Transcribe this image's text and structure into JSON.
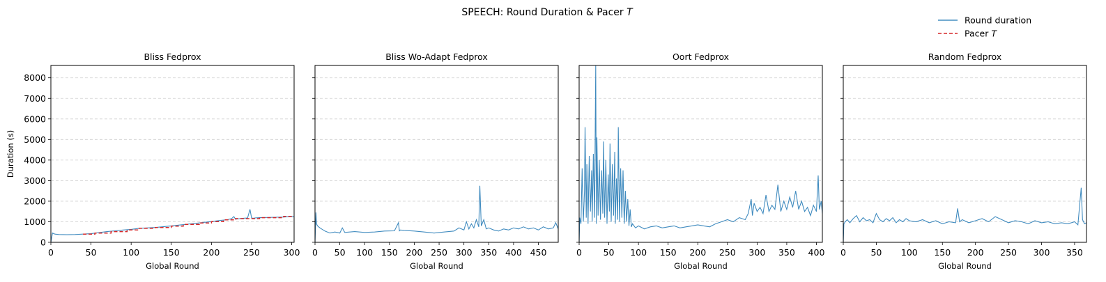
{
  "figure": {
    "suptitle_prefix": "SPEECH: Round Duration & Pacer ",
    "suptitle_italic": "T",
    "legend": {
      "round_label": "Round duration",
      "pacer_prefix": "Pacer ",
      "pacer_italic": "T",
      "placement": "top-right"
    },
    "colors": {
      "round": "#1f77b4",
      "pacer": "#d62728",
      "grid": "#b0b0b0"
    }
  },
  "chart_data": [
    {
      "type": "line",
      "title": "Bliss Fedprox",
      "xlabel": "Global Round",
      "ylabel": "Duration (s)",
      "xlim": [
        0,
        303
      ],
      "ylim": [
        0,
        8600
      ],
      "xticks": [
        0,
        50,
        100,
        150,
        200,
        250,
        300
      ],
      "yticks": [
        0,
        1000,
        2000,
        3000,
        4000,
        5000,
        6000,
        7000,
        8000
      ],
      "grid": "y-dashed",
      "series": [
        {
          "name": "Round duration",
          "x": [
            0,
            2,
            5,
            10,
            20,
            30,
            40,
            50,
            60,
            70,
            80,
            90,
            100,
            110,
            120,
            130,
            140,
            150,
            160,
            170,
            180,
            190,
            200,
            210,
            220,
            225,
            228,
            230,
            235,
            240,
            245,
            248,
            250,
            252,
            255,
            260,
            270,
            280,
            290,
            300,
            303
          ],
          "y": [
            0,
            450,
            400,
            380,
            370,
            380,
            400,
            420,
            470,
            520,
            560,
            600,
            630,
            680,
            700,
            720,
            760,
            800,
            840,
            880,
            920,
            970,
            1010,
            1060,
            1100,
            1150,
            1250,
            1120,
            1150,
            1170,
            1180,
            1600,
            1180,
            1170,
            1190,
            1200,
            1210,
            1220,
            1230,
            1250,
            1240
          ]
        },
        {
          "name": "Pacer T",
          "x": [
            40,
            55,
            55,
            75,
            75,
            95,
            95,
            110,
            110,
            130,
            130,
            150,
            150,
            165,
            165,
            185,
            185,
            200,
            200,
            215,
            215,
            230,
            230,
            260,
            260,
            290,
            290,
            303
          ],
          "y": [
            400,
            400,
            450,
            450,
            520,
            520,
            600,
            600,
            680,
            680,
            720,
            720,
            790,
            790,
            870,
            870,
            940,
            940,
            1010,
            1010,
            1090,
            1090,
            1150,
            1150,
            1200,
            1200,
            1260,
            1260
          ]
        }
      ]
    },
    {
      "type": "line",
      "title": "Bliss Wo-Adapt Fedprox",
      "xlabel": "Global Round",
      "ylabel": "",
      "xlim": [
        0,
        490
      ],
      "ylim": [
        0,
        8600
      ],
      "xticks": [
        0,
        50,
        100,
        150,
        200,
        250,
        300,
        350,
        400,
        450
      ],
      "yticks": [
        0,
        1000,
        2000,
        3000,
        4000,
        5000,
        6000,
        7000,
        8000
      ],
      "grid": "y-dashed",
      "series": [
        {
          "name": "Round duration",
          "x": [
            0,
            2,
            3,
            5,
            10,
            20,
            30,
            40,
            50,
            55,
            60,
            70,
            80,
            100,
            120,
            140,
            160,
            168,
            170,
            172,
            180,
            200,
            220,
            240,
            260,
            280,
            290,
            300,
            305,
            310,
            315,
            320,
            325,
            330,
            332,
            335,
            340,
            345,
            350,
            360,
            370,
            380,
            390,
            400,
            410,
            420,
            430,
            440,
            450,
            460,
            470,
            480,
            485,
            490
          ],
          "y": [
            0,
            1450,
            900,
            800,
            700,
            550,
            450,
            500,
            450,
            700,
            480,
            500,
            520,
            480,
            500,
            550,
            560,
            950,
            560,
            600,
            580,
            550,
            500,
            450,
            500,
            550,
            700,
            600,
            1000,
            650,
            900,
            700,
            1100,
            750,
            2750,
            800,
            1100,
            650,
            700,
            600,
            550,
            650,
            600,
            700,
            650,
            750,
            650,
            700,
            600,
            750,
            650,
            700,
            950,
            650
          ]
        }
      ]
    },
    {
      "type": "line",
      "title": "Oort Fedprox",
      "xlabel": "Global Round",
      "ylabel": "",
      "xlim": [
        0,
        410
      ],
      "ylim": [
        0,
        8600
      ],
      "xticks": [
        0,
        50,
        100,
        150,
        200,
        250,
        300,
        350,
        400
      ],
      "yticks": [
        0,
        1000,
        2000,
        3000,
        4000,
        5000,
        6000,
        7000,
        8000
      ],
      "grid": "y-dashed",
      "series": [
        {
          "name": "Round duration",
          "x": [
            0,
            1,
            3,
            5,
            7,
            9,
            10,
            12,
            13,
            15,
            17,
            19,
            21,
            22,
            24,
            26,
            28,
            29,
            30,
            32,
            34,
            36,
            38,
            40,
            41,
            43,
            45,
            47,
            49,
            51,
            52,
            54,
            56,
            58,
            60,
            61,
            63,
            65,
            66,
            68,
            70,
            72,
            74,
            76,
            78,
            80,
            82,
            84,
            86,
            88,
            90,
            95,
            100,
            110,
            120,
            130,
            140,
            150,
            160,
            170,
            180,
            190,
            200,
            210,
            220,
            230,
            240,
            250,
            260,
            270,
            280,
            285,
            290,
            292,
            295,
            300,
            305,
            310,
            315,
            320,
            325,
            330,
            335,
            340,
            345,
            350,
            355,
            360,
            365,
            370,
            375,
            380,
            385,
            390,
            395,
            400,
            403,
            405,
            408,
            410
          ],
          "y": [
            0,
            1200,
            900,
            3600,
            1000,
            2500,
            5600,
            1200,
            3800,
            900,
            4200,
            1500,
            3500,
            1000,
            4300,
            1200,
            8600,
            900,
            5100,
            1300,
            4000,
            1100,
            3500,
            1400,
            4900,
            1200,
            4000,
            900,
            3300,
            1500,
            4800,
            1000,
            3800,
            1300,
            4400,
            900,
            3100,
            1100,
            5600,
            1000,
            3600,
            1200,
            3500,
            900,
            2500,
            1000,
            2100,
            800,
            1600,
            750,
            900,
            700,
            800,
            650,
            750,
            800,
            700,
            750,
            800,
            700,
            750,
            800,
            850,
            800,
            750,
            900,
            1000,
            1100,
            1000,
            1200,
            1100,
            1400,
            2100,
            1300,
            1900,
            1500,
            1700,
            1400,
            2300,
            1500,
            1800,
            1600,
            2800,
            1500,
            2000,
            1600,
            2200,
            1700,
            2500,
            1600,
            2000,
            1500,
            1700,
            1300,
            1800,
            1500,
            3250,
            1600,
            2000,
            1400
          ]
        }
      ]
    },
    {
      "type": "line",
      "title": "Random Fedprox",
      "xlabel": "Global Round",
      "ylabel": "",
      "xlim": [
        0,
        368
      ],
      "ylim": [
        0,
        8600
      ],
      "xticks": [
        0,
        50,
        100,
        150,
        200,
        250,
        300,
        350
      ],
      "yticks": [
        0,
        1000,
        2000,
        3000,
        4000,
        5000,
        6000,
        7000,
        8000
      ],
      "grid": "y-dashed",
      "series": [
        {
          "name": "Round duration",
          "x": [
            0,
            1,
            3,
            6,
            10,
            15,
            20,
            25,
            30,
            35,
            40,
            45,
            50,
            55,
            60,
            65,
            70,
            75,
            80,
            85,
            90,
            95,
            100,
            110,
            120,
            130,
            140,
            150,
            160,
            170,
            173,
            176,
            180,
            190,
            200,
            210,
            220,
            230,
            240,
            250,
            260,
            270,
            280,
            290,
            300,
            310,
            320,
            330,
            340,
            350,
            355,
            360,
            362,
            365,
            368
          ],
          "y": [
            0,
            900,
            1000,
            1100,
            950,
            1150,
            1300,
            1000,
            1200,
            1050,
            1100,
            950,
            1400,
            1100,
            1000,
            1150,
            1050,
            1200,
            950,
            1100,
            1000,
            1150,
            1050,
            1000,
            1100,
            950,
            1050,
            900,
            1000,
            950,
            1650,
            1000,
            1100,
            950,
            1050,
            1150,
            1000,
            1250,
            1100,
            950,
            1050,
            1000,
            900,
            1050,
            950,
            1000,
            900,
            950,
            900,
            1000,
            850,
            2650,
            1100,
            900,
            950
          ]
        }
      ]
    }
  ]
}
